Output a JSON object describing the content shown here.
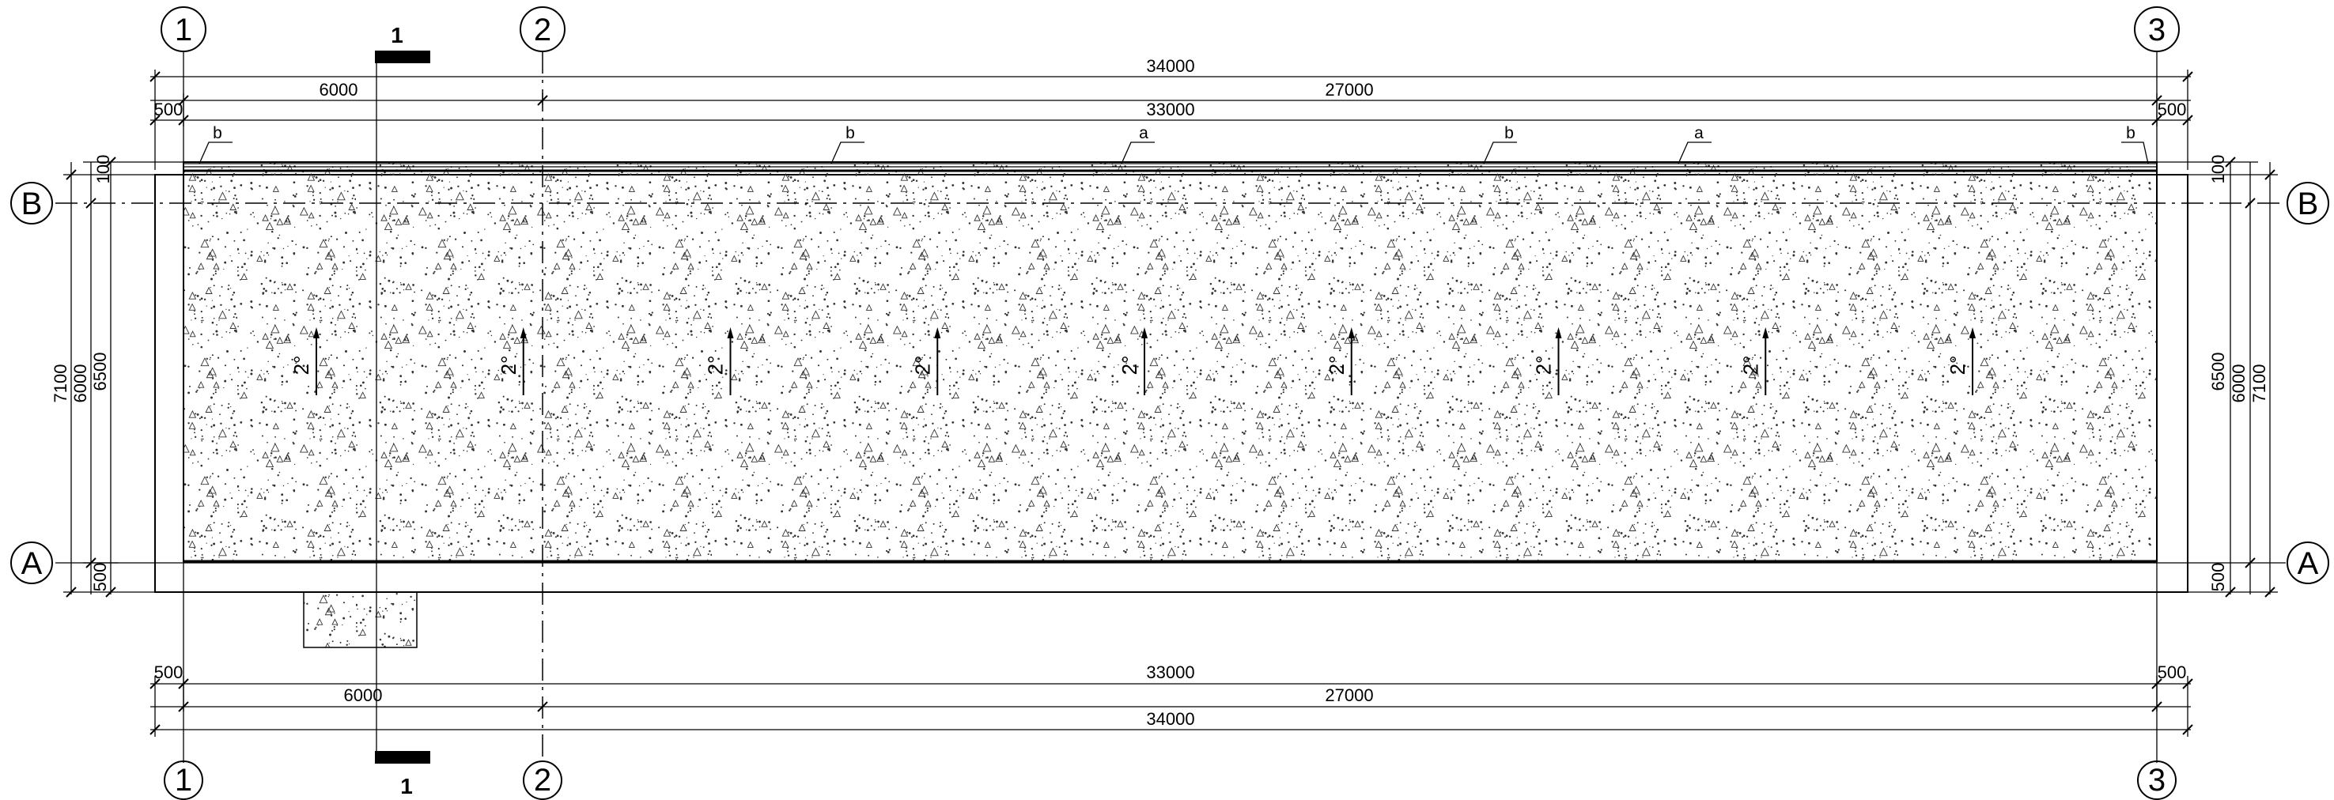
{
  "axes": {
    "vertical": [
      "1",
      "2",
      "3"
    ],
    "horizontal": [
      "B",
      "A"
    ]
  },
  "section_mark": "1",
  "top_dims": {
    "overall": "34000",
    "bay_1": "6000",
    "bay_2": "27000",
    "edge_left": "500",
    "inner": "33000",
    "edge_right": "500"
  },
  "bottom_dims": {
    "edge_left": "500",
    "inner": "33000",
    "edge_right": "500",
    "bay_1": "6000",
    "bay_2": "27000",
    "overall": "34000"
  },
  "side_dims": {
    "top_offset": "100",
    "span_outer": "7100",
    "span_axes": "6000",
    "span_slab": "6500",
    "bottom_offset": "500"
  },
  "edge_tags": [
    "b",
    "b",
    "a",
    "b",
    "a",
    "b"
  ],
  "slope_label": "2°",
  "slope_count": 9
}
